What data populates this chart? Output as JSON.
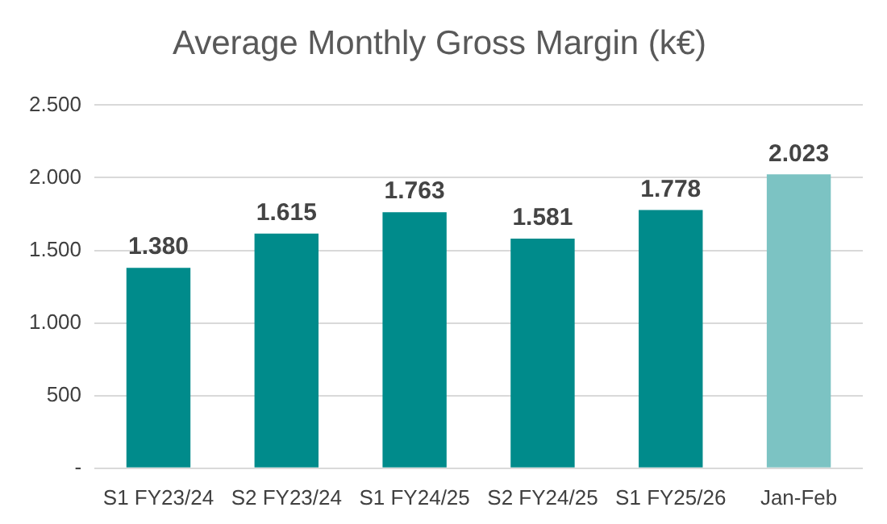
{
  "chart_data": {
    "type": "bar",
    "title": "Average Monthly Gross Margin (k€)",
    "categories": [
      "S1 FY23/24",
      "S2 FY23/24",
      "S1 FY24/25",
      "S2 FY24/25",
      "S1 FY25/26",
      "Jan-Feb"
    ],
    "values": [
      1380,
      1615,
      1763,
      1581,
      1778,
      2023
    ],
    "value_labels": [
      "1.380",
      "1.615",
      "1.763",
      "1.581",
      "1.778",
      "2.023"
    ],
    "colors": [
      "#008b8b",
      "#008b8b",
      "#008b8b",
      "#008b8b",
      "#008b8b",
      "#7cc3c3"
    ],
    "ylim": [
      0,
      2500
    ],
    "yticks": [
      {
        "value": 0,
        "label": "-"
      },
      {
        "value": 500,
        "label": "500"
      },
      {
        "value": 1000,
        "label": "1.000"
      },
      {
        "value": 1500,
        "label": "1.500"
      },
      {
        "value": 2000,
        "label": "2.000"
      },
      {
        "value": 2500,
        "label": "2.500"
      }
    ],
    "grid": "y"
  }
}
